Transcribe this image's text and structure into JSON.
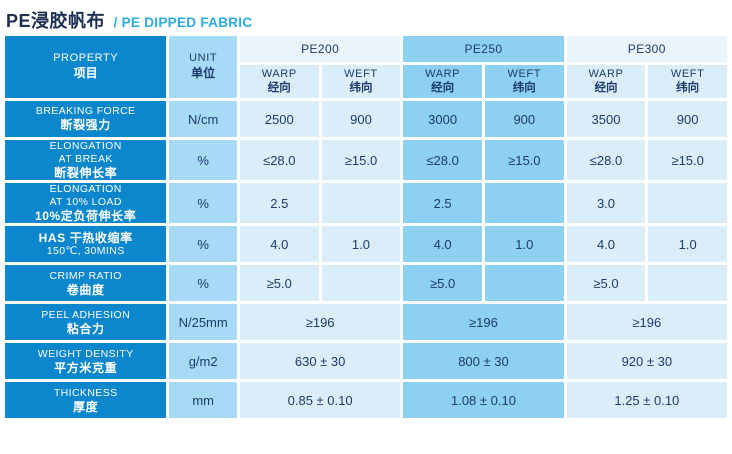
{
  "title": {
    "zh": "PE浸胶帆布",
    "en": "/ PE DIPPED FABRIC"
  },
  "colors": {
    "label_blue": "#0C86CC",
    "unit_blue": "#A7DAF4",
    "light_cell": "#DBEDF9",
    "light_header": "#E9F4FC",
    "medium_cell": "#8DD0F1",
    "title_navy": "#1C2E52",
    "title_cyan": "#29ABE2",
    "text_navy": "#1D3A6D"
  },
  "table": {
    "property_header": {
      "en": "PROPERTY",
      "zh": "项目"
    },
    "unit_header": {
      "en": "UNIT",
      "zh": "单位"
    },
    "groups": [
      {
        "name": "PE200",
        "shade": "light"
      },
      {
        "name": "PE250",
        "shade": "medium"
      },
      {
        "name": "PE300",
        "shade": "light"
      }
    ],
    "direction_headers": {
      "warp_en": "WARP",
      "warp_zh": "经向",
      "weft_en": "WEFT",
      "weft_zh": "纬向"
    },
    "rows": [
      {
        "label_lines": [
          {
            "text": "BREAKING FORCE",
            "bold": false
          },
          {
            "text": "断裂强力",
            "bold": true
          }
        ],
        "unit": "N/cm",
        "merged": false,
        "values": [
          "2500",
          "900",
          "3000",
          "900",
          "3500",
          "900"
        ]
      },
      {
        "label_lines": [
          {
            "text": "ELONGATION",
            "bold": false
          },
          {
            "text": "AT BREAK",
            "bold": false
          },
          {
            "text": "断裂伸长率",
            "bold": true
          }
        ],
        "unit": "%",
        "merged": false,
        "tall": true,
        "values": [
          "≤28.0",
          "≥15.0",
          "≤28.0",
          "≥15.0",
          "≤28.0",
          "≥15.0"
        ]
      },
      {
        "label_lines": [
          {
            "text": "ELONGATION",
            "bold": false
          },
          {
            "text": "AT 10% LOAD",
            "bold": false
          },
          {
            "text": "10%定负荷伸长率",
            "bold": true
          }
        ],
        "unit": "%",
        "merged": false,
        "tall": true,
        "values": [
          "2.5",
          "",
          "2.5",
          "",
          "3.0",
          ""
        ]
      },
      {
        "label_lines": [
          {
            "text": "HAS 干热收缩率",
            "bold": true
          },
          {
            "text": "150℃, 30MINS",
            "bold": false
          }
        ],
        "unit": "%",
        "merged": false,
        "values": [
          "4.0",
          "1.0",
          "4.0",
          "1.0",
          "4.0",
          "1.0"
        ]
      },
      {
        "label_lines": [
          {
            "text": "CRIMP RATIO",
            "bold": false
          },
          {
            "text": "卷曲度",
            "bold": true
          }
        ],
        "unit": "%",
        "merged": false,
        "values": [
          "≥5.0",
          "",
          "≥5.0",
          "",
          "≥5.0",
          ""
        ]
      },
      {
        "label_lines": [
          {
            "text": "PEEL ADHESION",
            "bold": false
          },
          {
            "text": "粘合力",
            "bold": true
          }
        ],
        "unit": "N/25mm",
        "merged": true,
        "values": [
          "≥196",
          "≥196",
          "≥196"
        ]
      },
      {
        "label_lines": [
          {
            "text": "WEIGHT DENSITY",
            "bold": false
          },
          {
            "text": "平方米克重",
            "bold": true
          }
        ],
        "unit": "g/m2",
        "merged": true,
        "values": [
          "630 ± 30",
          "800 ± 30",
          "920 ± 30"
        ]
      },
      {
        "label_lines": [
          {
            "text": "THICKNESS",
            "bold": false
          },
          {
            "text": "厚度",
            "bold": true
          }
        ],
        "unit": "mm",
        "merged": true,
        "values": [
          "0.85 ± 0.10",
          "1.08 ± 0.10",
          "1.25 ± 0.10"
        ]
      }
    ]
  }
}
